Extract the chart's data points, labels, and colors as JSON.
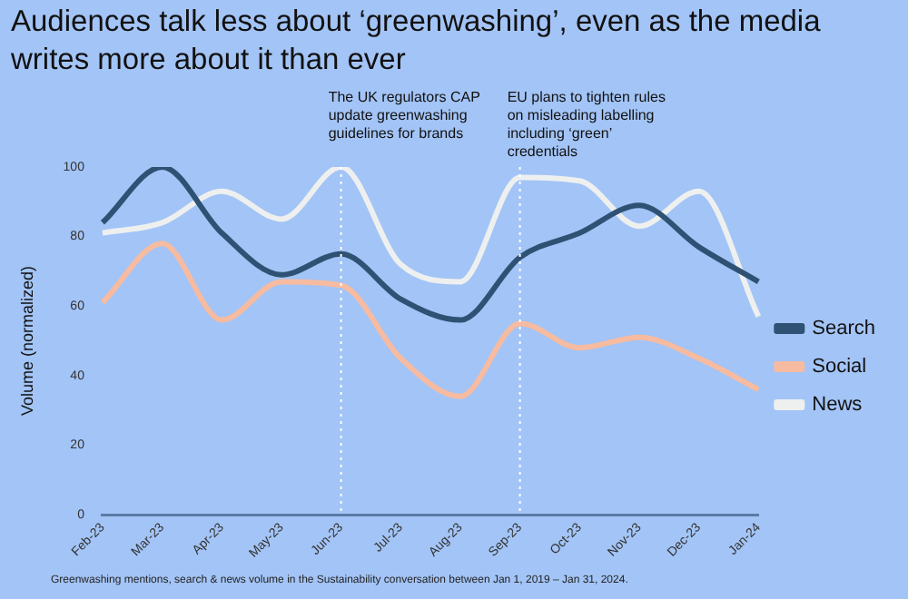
{
  "chart_data": {
    "type": "line",
    "title": "Audiences talk less about ‘greenwashing’, even as the media writes more about it than ever",
    "ylabel": "Volume (normalized)",
    "categories": [
      "Feb-23",
      "Mar-23",
      "Apr-23",
      "May-23",
      "Jun-23",
      "Jul-23",
      "Aug-23",
      "Sep-23",
      "Oct-23",
      "Nov-23",
      "Dec-23",
      "Jan-24"
    ],
    "series": [
      {
        "name": "Search",
        "color": "#2f5274",
        "values": [
          84,
          100,
          81,
          69,
          75,
          62,
          56,
          74,
          81,
          89,
          77,
          67
        ]
      },
      {
        "name": "Social",
        "color": "#f6bba0",
        "values": [
          61,
          78,
          56,
          67,
          66,
          45,
          34,
          55,
          48,
          51,
          45,
          36
        ]
      },
      {
        "name": "News",
        "color": "#eef0ef",
        "values": [
          81,
          84,
          93,
          85,
          100,
          72,
          67,
          97,
          96,
          83,
          93,
          57
        ]
      }
    ],
    "ylim": [
      0,
      100
    ],
    "yticks": [
      0,
      20,
      40,
      60,
      80,
      100
    ],
    "grid": false,
    "legend": "right",
    "marker": "none",
    "line_style": "solid",
    "ref_lines": [
      {
        "axis": "x",
        "value": "Jun-23",
        "label": "The UK regulators CAP update greenwashing guidelines for brands",
        "color": "#ffffff",
        "line_style": "dotted"
      },
      {
        "axis": "x",
        "value": "Sep-23",
        "label": "EU plans to tighten rules on misleading labelling including ‘green’ credentials",
        "color": "#ffffff",
        "line_style": "dotted"
      }
    ],
    "annotations": [
      "Greenwashing mentions,  search & news volume in the Sustainability conversation between Jan 1, 2019 – Jan 31, 2024."
    ]
  }
}
